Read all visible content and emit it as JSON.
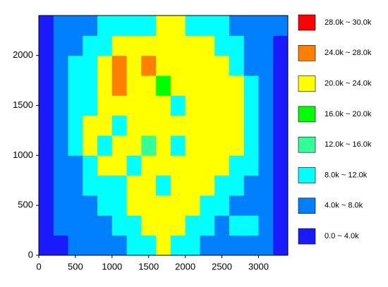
{
  "chart_data": {
    "type": "contour",
    "x": [
      0,
      200,
      400,
      600,
      800,
      1000,
      1200,
      1400,
      1600,
      1800,
      2000,
      2200,
      2400,
      2600,
      2800,
      3000,
      3200,
      3400
    ],
    "y": [
      0,
      200,
      400,
      600,
      800,
      1000,
      1200,
      1400,
      1600,
      1800,
      2000,
      2200,
      2400
    ],
    "z": [
      [
        2000,
        2000,
        6000,
        6000,
        6000,
        6000,
        10000,
        10000,
        22000,
        10000,
        10000,
        6000,
        6000,
        6000,
        6000,
        6000,
        2000
      ],
      [
        2000,
        6000,
        6000,
        6000,
        6000,
        10000,
        10000,
        22000,
        22000,
        22000,
        10000,
        10000,
        6000,
        10000,
        10000,
        6000,
        2000
      ],
      [
        2000,
        6000,
        6000,
        6000,
        10000,
        10000,
        22000,
        22000,
        22000,
        22000,
        22000,
        10000,
        10000,
        6000,
        6000,
        6000,
        2000
      ],
      [
        2000,
        6000,
        6000,
        10000,
        10000,
        10000,
        22000,
        22000,
        10000,
        22000,
        22000,
        22000,
        10000,
        10000,
        6000,
        6000,
        2000
      ],
      [
        2000,
        6000,
        6000,
        10000,
        22000,
        22000,
        10000,
        22000,
        22000,
        22000,
        22000,
        22000,
        22000,
        10000,
        10000,
        6000,
        2000
      ],
      [
        2000,
        6000,
        10000,
        22000,
        10000,
        22000,
        22000,
        14000,
        22000,
        10000,
        22000,
        22000,
        22000,
        22000,
        10000,
        6000,
        2000
      ],
      [
        2000,
        6000,
        10000,
        22000,
        22000,
        10000,
        22000,
        22000,
        22000,
        22000,
        22000,
        22000,
        22000,
        22000,
        10000,
        6000,
        2000
      ],
      [
        2000,
        6000,
        10000,
        10000,
        22000,
        22000,
        22000,
        22000,
        22000,
        10000,
        22000,
        22000,
        22000,
        22000,
        10000,
        6000,
        2000
      ],
      [
        2000,
        6000,
        10000,
        10000,
        22000,
        26000,
        22000,
        22000,
        18000,
        22000,
        22000,
        22000,
        22000,
        22000,
        10000,
        6000,
        2000
      ],
      [
        2000,
        6000,
        10000,
        10000,
        22000,
        26000,
        22000,
        26000,
        22000,
        22000,
        22000,
        22000,
        22000,
        10000,
        6000,
        6000,
        2000
      ],
      [
        2000,
        6000,
        6000,
        10000,
        10000,
        22000,
        22000,
        22000,
        22000,
        22000,
        22000,
        22000,
        10000,
        10000,
        6000,
        6000,
        2000
      ],
      [
        2000,
        6000,
        6000,
        6000,
        10000,
        10000,
        10000,
        10000,
        22000,
        22000,
        10000,
        10000,
        10000,
        6000,
        6000,
        6000,
        6000
      ]
    ],
    "xlim": [
      0,
      3400
    ],
    "ylim": [
      0,
      2400
    ],
    "xticks": [
      0,
      500,
      1000,
      1500,
      2000,
      2500,
      3000
    ],
    "yticks": [
      0,
      500,
      1000,
      1500,
      2000
    ],
    "legend": [
      {
        "label": "28.0k ~ 30.0k",
        "min": 28000,
        "max": 30000,
        "color": "#ff0000"
      },
      {
        "label": "24.0k ~ 28.0k",
        "min": 24000,
        "max": 28000,
        "color": "#ff8000"
      },
      {
        "label": "20.0k ~ 24.0k",
        "min": 20000,
        "max": 24000,
        "color": "#ffff00"
      },
      {
        "label": "16.0k ~ 20.0k",
        "min": 16000,
        "max": 20000,
        "color": "#00ff00"
      },
      {
        "label": "12.0k ~ 16.0k",
        "min": 12000,
        "max": 16000,
        "color": "#33ff99"
      },
      {
        "label": "8.0k ~ 12.0k",
        "min": 8000,
        "max": 12000,
        "color": "#00ffff"
      },
      {
        "label": "4.0k ~ 8.0k",
        "min": 4000,
        "max": 8000,
        "color": "#0080ff"
      },
      {
        "label": "0.0 ~ 4.0k",
        "min": 0,
        "max": 4000,
        "color": "#1a1aff"
      }
    ]
  }
}
